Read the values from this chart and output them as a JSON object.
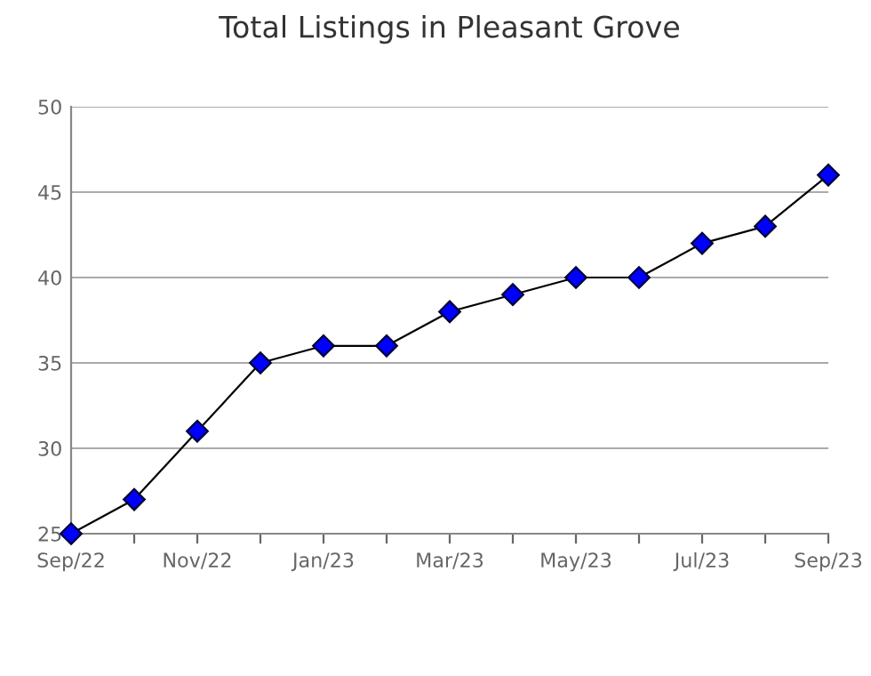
{
  "chart_data": {
    "type": "line",
    "title": "Total Listings in Pleasant Grove",
    "categories": [
      "Sep/22",
      null,
      "Nov/22",
      null,
      "Jan/23",
      null,
      "Mar/23",
      null,
      "May/23",
      null,
      "Jul/23",
      null,
      "Sep/23"
    ],
    "series": [
      {
        "color": "#0000ff",
        "values": [
          25,
          27,
          31,
          35,
          36,
          36,
          38,
          39,
          40,
          40,
          42,
          43,
          46
        ]
      }
    ],
    "ylim": [
      25,
      50
    ],
    "yticks": [
      25,
      30,
      35,
      40,
      45,
      50
    ],
    "grid": "y",
    "marker": "diamond",
    "line_style": "solid",
    "legend": false
  }
}
